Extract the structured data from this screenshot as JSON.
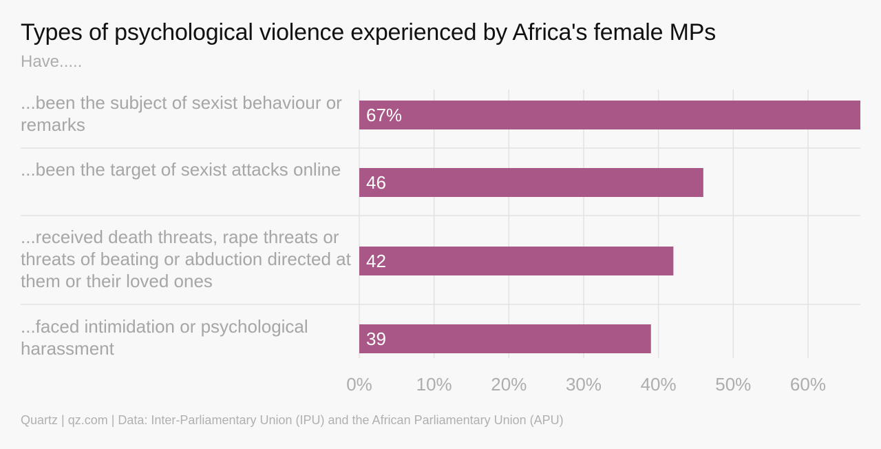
{
  "title": "Types of psychological violence experienced by Africa's female MPs",
  "subtitle": "Have.....",
  "footer": "Quartz | qz.com | Data: Inter-Parliamentary Union (IPU) and the African Parliamentary Union (APU)",
  "chart_data": {
    "type": "bar",
    "orientation": "horizontal",
    "categories": [
      "...been the subject of sexist behaviour or remarks",
      "...been the target of sexist attacks online",
      "...received death threats, rape threats or threats of beating or abduction directed at them or their loved ones",
      "...faced intimidation or psychological harassment"
    ],
    "values": [
      67,
      46,
      42,
      39
    ],
    "data_labels": [
      "67%",
      "46",
      "42",
      "39"
    ],
    "xlim": [
      0,
      67
    ],
    "xticks": [
      0,
      10,
      20,
      30,
      40,
      50,
      60
    ],
    "xtick_labels": [
      "0%",
      "10%",
      "20%",
      "30%",
      "40%",
      "50%",
      "60%"
    ],
    "grid": true,
    "bar_color": "#a85786"
  }
}
